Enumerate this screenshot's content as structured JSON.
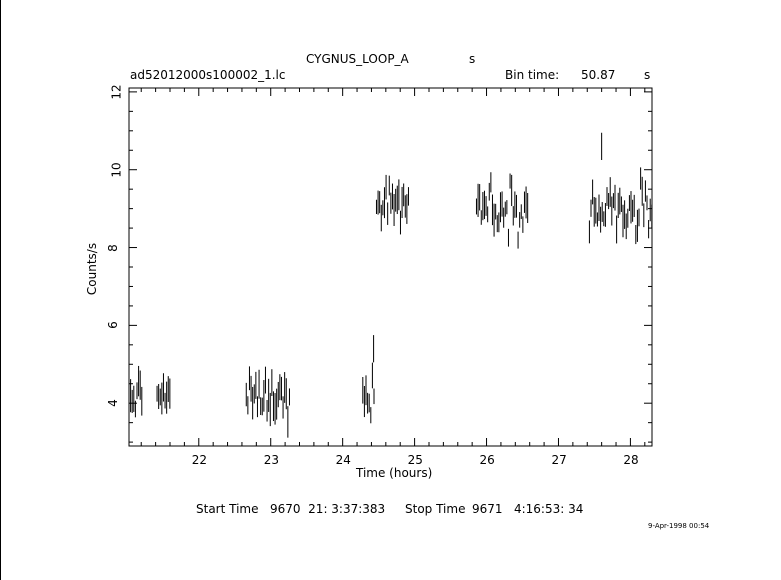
{
  "chart_data": {
    "type": "scatter",
    "title": "CYGNUS_LOOP_A",
    "title_suffix": "s",
    "file_name": "ad52012000s100002_1.lc",
    "bin_time": {
      "label": "Bin time:",
      "value": "50.87",
      "unit": "s"
    },
    "xlabel": "Time (hours)",
    "ylabel": "Counts/s",
    "xlim": [
      21.03,
      28.3
    ],
    "ylim": [
      2.9,
      12.1
    ],
    "x_ticks": [
      "22",
      "23",
      "24",
      "25",
      "26",
      "27",
      "28"
    ],
    "y_ticks": [
      "4",
      "6",
      "8",
      "10",
      "12"
    ],
    "error_bars": true,
    "segments": [
      {
        "x_start": 21.03,
        "x_end": 21.22,
        "mean": 4.2,
        "amp": 0.35
      },
      {
        "x_start": 21.42,
        "x_end": 21.62,
        "mean": 4.2,
        "amp": 0.35
      },
      {
        "x_start": 22.66,
        "x_end": 23.28,
        "mean": 4.15,
        "amp": 0.4
      },
      {
        "x_start": 24.28,
        "x_end": 24.45,
        "mean": 4.2,
        "amp": 0.4
      },
      {
        "x_start": 24.47,
        "x_end": 24.93,
        "mean": 9.25,
        "amp": 0.45
      },
      {
        "x_start": 25.86,
        "x_end": 26.58,
        "mean": 9.05,
        "amp": 0.55
      },
      {
        "x_start": 27.43,
        "x_end": 28.3,
        "mean": 8.9,
        "amp": 0.55
      }
    ],
    "extra_points": [
      {
        "x": 24.43,
        "y": 5.4
      },
      {
        "x": 27.6,
        "y": 10.6
      }
    ]
  },
  "footer": {
    "start_label": "Start Time",
    "start_value": "9670  21: 3:37:383",
    "stop_label": "Stop Time",
    "stop_value": "9671   4:16:53: 34",
    "timestamp": "9-Apr-1998 00:54"
  }
}
